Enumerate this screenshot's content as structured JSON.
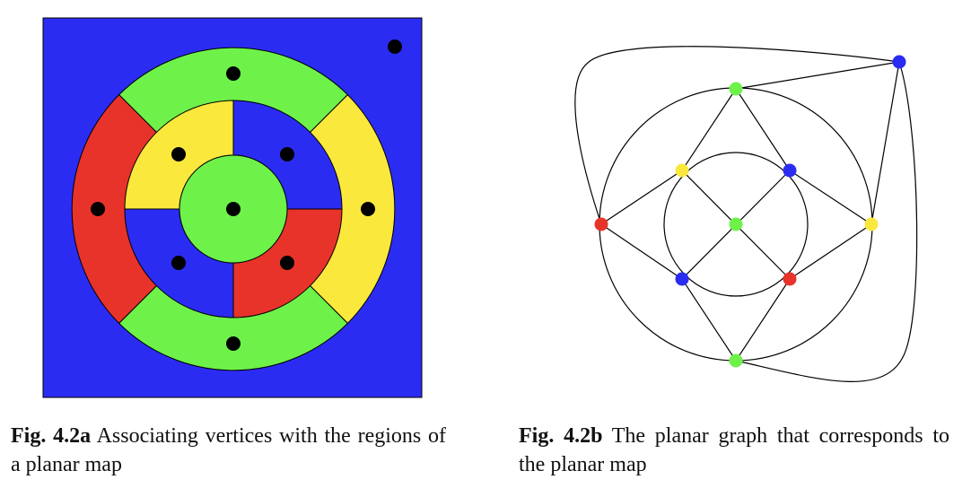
{
  "colors": {
    "blue": "#2b2cf2",
    "green": "#6ef24a",
    "yellow": "#fbe83d",
    "red": "#e8332a",
    "dot": "#000000",
    "edge": "#000000"
  },
  "figure_a": {
    "regions": [
      {
        "id": "outer",
        "color": "blue"
      },
      {
        "id": "ring-top",
        "color": "green"
      },
      {
        "id": "ring-right",
        "color": "yellow"
      },
      {
        "id": "ring-bottom",
        "color": "green"
      },
      {
        "id": "ring-left",
        "color": "red"
      },
      {
        "id": "inner-top-left",
        "color": "yellow"
      },
      {
        "id": "inner-top-right",
        "color": "blue"
      },
      {
        "id": "inner-bottom-right",
        "color": "red"
      },
      {
        "id": "inner-bottom-left",
        "color": "blue"
      },
      {
        "id": "center",
        "color": "green"
      }
    ]
  },
  "figure_b": {
    "vertices": [
      {
        "id": "outer",
        "color": "blue"
      },
      {
        "id": "ring-top",
        "color": "green"
      },
      {
        "id": "ring-right",
        "color": "yellow"
      },
      {
        "id": "ring-bottom",
        "color": "green"
      },
      {
        "id": "ring-left",
        "color": "red"
      },
      {
        "id": "inner-top-left",
        "color": "yellow"
      },
      {
        "id": "inner-top-right",
        "color": "blue"
      },
      {
        "id": "inner-bottom-right",
        "color": "red"
      },
      {
        "id": "inner-bottom-left",
        "color": "blue"
      },
      {
        "id": "center",
        "color": "green"
      }
    ]
  },
  "captions": {
    "a": {
      "label": "Fig. 4.2a",
      "text": "Associating vertices with the regions of a planar map"
    },
    "b": {
      "label": "Fig. 4.2b",
      "text": "The planar graph that corresponds to the planar map"
    }
  }
}
